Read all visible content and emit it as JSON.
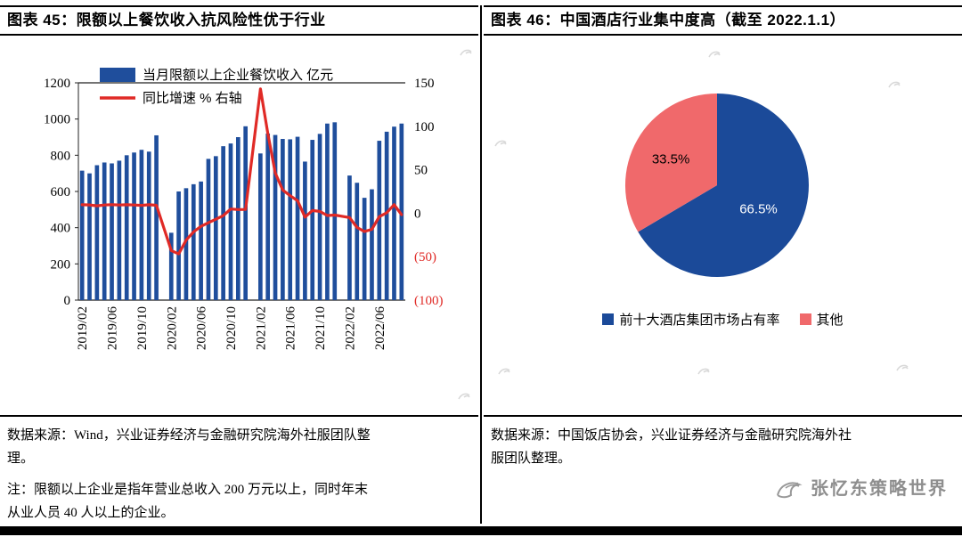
{
  "left_panel": {
    "title": "图表 45：限额以上餐饮收入抗风险性优于行业",
    "source_lines": [
      "数据来源：Wind，兴业证券经济与金融研究院海外社服团队整",
      "理。"
    ],
    "note_lines": [
      "注：限额以上企业是指年营业总收入 200 万元以上，同时年末",
      "从业人员 40 人以上的企业。"
    ]
  },
  "right_panel": {
    "title": "图表 46：中国酒店行业集中度高（截至 2022.1.1）",
    "source_lines": [
      "数据来源：中国饭店协会，兴业证券经济与金融研究院海外社",
      "服团队整理。"
    ],
    "brand": "张忆东策略世界"
  },
  "chart_data": [
    {
      "type": "bar",
      "subtype": "bar-line-combo",
      "bar_color": "#1f4e9c",
      "line_color": "#e02a26",
      "x": [
        "2019/02",
        "2019/03",
        "2019/04",
        "2019/05",
        "2019/06",
        "2019/07",
        "2019/08",
        "2019/09",
        "2019/10",
        "2019/11",
        "2019/12",
        "2020/01",
        "2020/02",
        "2020/03",
        "2020/04",
        "2020/05",
        "2020/06",
        "2020/07",
        "2020/08",
        "2020/09",
        "2020/10",
        "2020/11",
        "2020/12",
        "2021/01",
        "2021/02",
        "2021/03",
        "2021/04",
        "2021/05",
        "2021/06",
        "2021/07",
        "2021/08",
        "2021/09",
        "2021/10",
        "2021/11",
        "2021/12",
        "2022/01",
        "2022/02",
        "2022/03",
        "2022/04",
        "2022/05",
        "2022/06",
        "2022/07",
        "2022/08",
        "2022/09"
      ],
      "bars": [
        715,
        700,
        745,
        760,
        755,
        770,
        800,
        815,
        830,
        820,
        910,
        null,
        372,
        600,
        618,
        640,
        655,
        780,
        795,
        850,
        865,
        900,
        960,
        null,
        810,
        920,
        912,
        890,
        888,
        902,
        765,
        885,
        918,
        975,
        982,
        null,
        688,
        648,
        565,
        612,
        880,
        930,
        958,
        975
      ],
      "line": [
        9.7,
        9.5,
        8.5,
        9.4,
        9.8,
        9.4,
        9.7,
        9.4,
        9.0,
        9.7,
        9.1,
        null,
        -43.0,
        -46.8,
        -31.0,
        -21.5,
        -15.2,
        -11.0,
        -7.0,
        -2.9,
        4.8,
        4.2,
        4.3,
        null,
        143,
        91.6,
        46.4,
        26.6,
        20.2,
        14.3,
        -4.5,
        3.1,
        2.0,
        -2.7,
        -2.2,
        null,
        -5.0,
        -16.4,
        -21.1,
        -18.5,
        -4.0,
        0.5,
        9.8,
        -1.7
      ],
      "x_tick_indices": [
        0,
        4,
        8,
        12,
        16,
        20,
        24,
        28,
        32,
        36,
        40
      ],
      "left_axis": {
        "unit": "亿元",
        "ticks": [
          0,
          200,
          400,
          600,
          800,
          1000,
          1200
        ],
        "max": 1200
      },
      "right_axis": {
        "unit": "%",
        "min": -100,
        "max": 150,
        "negative_color": "#e02a26",
        "ticks": [
          {
            "label": "150",
            "value": 150
          },
          {
            "label": "100",
            "value": 100
          },
          {
            "label": "50",
            "value": 50
          },
          {
            "label": "0",
            "value": 0
          },
          {
            "label": "(50)",
            "value": -50
          },
          {
            "label": "(100)",
            "value": -100
          }
        ]
      },
      "legend": [
        {
          "swatch": "bar",
          "label": "当月限额以上企业餐饮收入 亿元"
        },
        {
          "swatch": "line",
          "label": "同比增速 % 右轴"
        }
      ]
    },
    {
      "type": "pie",
      "start_angle_deg": -90,
      "slices": [
        {
          "label": "前十大酒店集团市场占有率",
          "value": 66.5,
          "color": "#1b4a99",
          "label_color": "#ffffff",
          "label_r": 0.52
        },
        {
          "label": "其他",
          "value": 33.5,
          "color": "#f0696b",
          "label_color": "#000000",
          "label_r": 0.58
        }
      ],
      "legend_position": "bottom"
    }
  ]
}
